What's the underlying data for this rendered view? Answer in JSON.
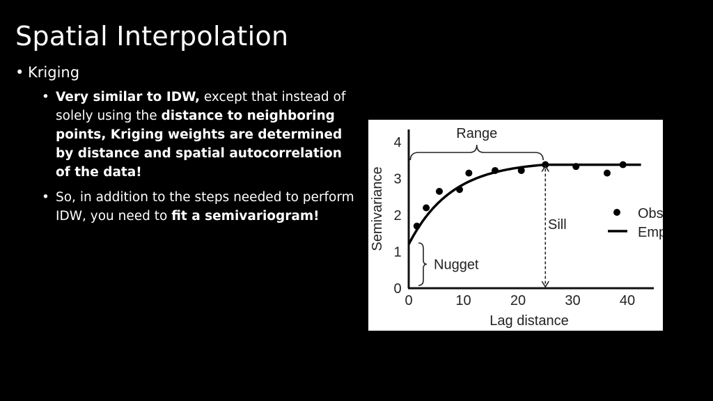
{
  "slide": {
    "title": "Spatial Interpolation",
    "bullet1": "Kriging",
    "sub1": {
      "b1": "Very similar to IDW,",
      "t1": " except that instead of solely using the ",
      "b2": "distance to neighboring points, Kriging weights are determined by distance and spatial autocorrelation of the data!"
    },
    "sub2": {
      "t1": "So, in addition to the steps needed to perform IDW, you need to ",
      "b1": "fit a semivariogram!"
    }
  },
  "chart_data": {
    "type": "scatter",
    "xlabel": "Lag distance",
    "ylabel": "Semivariance",
    "xlim": [
      0,
      43
    ],
    "ylim": [
      0,
      4.5
    ],
    "xticks": [
      0,
      10,
      20,
      30,
      40
    ],
    "yticks": [
      0,
      1,
      2,
      3,
      4
    ],
    "series": [
      {
        "name": "Observed",
        "kind": "points",
        "x": [
          1.5,
          3.2,
          5.6,
          9.3,
          11.0,
          15.8,
          20.6,
          25.0,
          30.6,
          36.3,
          39.2
        ],
        "y": [
          1.7,
          2.2,
          2.65,
          2.7,
          3.15,
          3.22,
          3.22,
          3.38,
          3.33,
          3.15,
          3.38
        ]
      },
      {
        "name": "Empirical",
        "kind": "line",
        "nugget": 1.2,
        "sill": 3.38,
        "range": 25,
        "x_end": 42.5
      }
    ],
    "annotations": {
      "range_label": "Range",
      "sill_label": "Sill",
      "nugget_label": "Nugget"
    },
    "legend": {
      "position": "right",
      "entries": [
        "Observed",
        "Empirical"
      ]
    }
  }
}
